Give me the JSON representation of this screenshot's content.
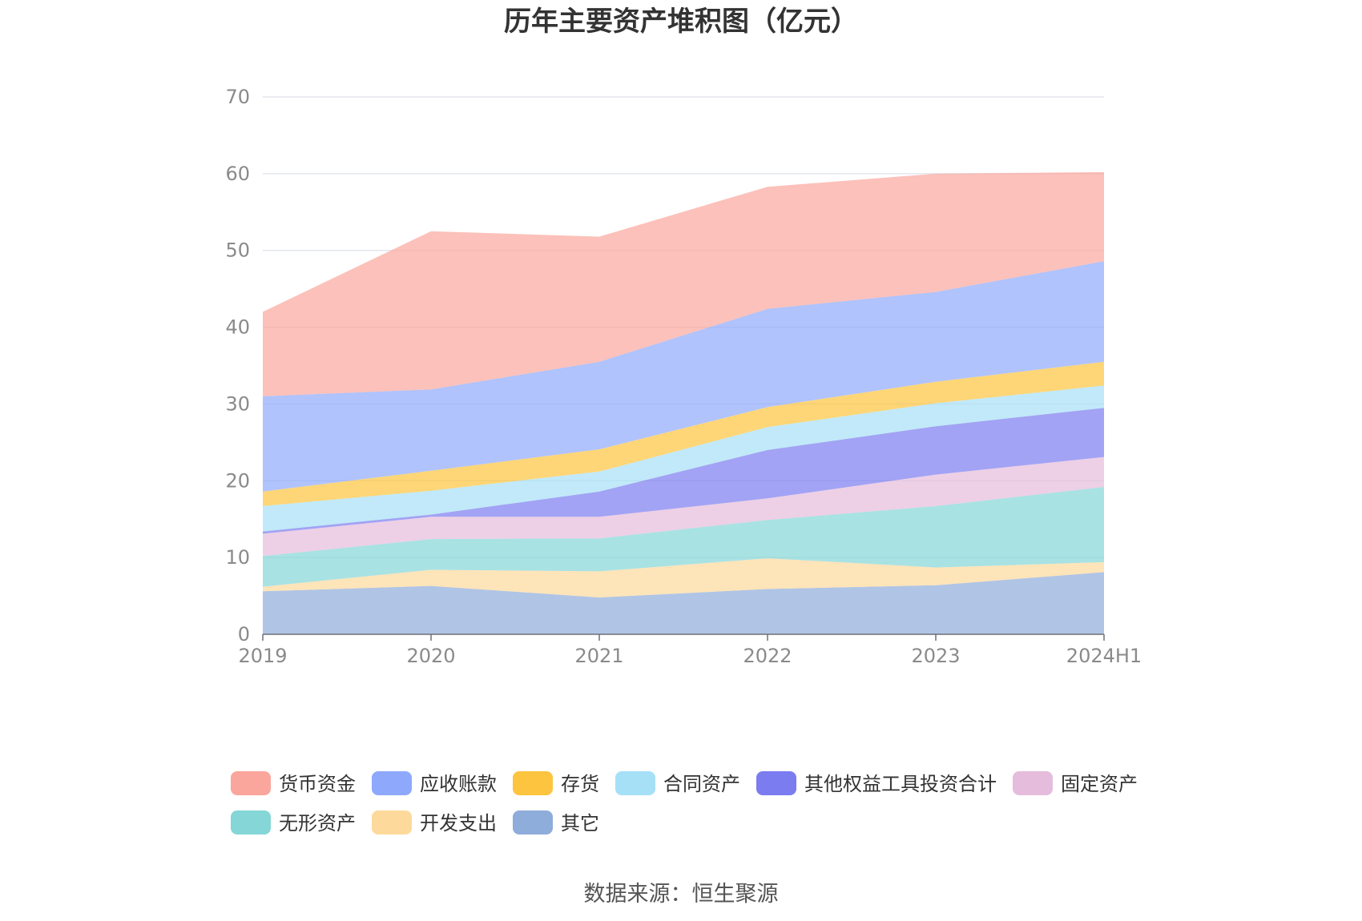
{
  "chart_data": {
    "type": "area",
    "stacked": true,
    "title": "历年主要资产堆积图（亿元）",
    "source": "数据来源：恒生聚源",
    "categories": [
      "2019",
      "2020",
      "2021",
      "2022",
      "2023",
      "2024H1"
    ],
    "ylim": [
      0,
      70
    ],
    "yticks": [
      "0",
      "10",
      "20",
      "30",
      "40",
      "50",
      "60",
      "70"
    ],
    "grid": true,
    "legend_position": "bottom",
    "series": [
      {
        "name": "其它",
        "color": "#8fadda",
        "values": [
          5.6,
          6.3,
          4.8,
          5.9,
          6.4,
          8.1
        ]
      },
      {
        "name": "开发支出",
        "color": "#fdd99b",
        "values": [
          0.6,
          2.1,
          3.4,
          4.0,
          2.3,
          1.3
        ]
      },
      {
        "name": "无形资产",
        "color": "#85d6d7",
        "values": [
          4.0,
          4.0,
          4.3,
          5.0,
          8.0,
          9.8
        ]
      },
      {
        "name": "固定资产",
        "color": "#e6bcdc",
        "values": [
          2.9,
          2.9,
          2.8,
          2.8,
          4.1,
          3.9
        ]
      },
      {
        "name": "其他权益工具投资合计",
        "color": "#7b7cf0",
        "values": [
          0.3,
          0.3,
          3.3,
          6.3,
          6.3,
          6.4
        ]
      },
      {
        "name": "合同资产",
        "color": "#a6e0f7",
        "values": [
          3.3,
          3.1,
          2.6,
          3.0,
          3.0,
          2.9
        ]
      },
      {
        "name": "存货",
        "color": "#fdc43f",
        "values": [
          1.9,
          2.6,
          2.9,
          2.6,
          2.8,
          3.1
        ]
      },
      {
        "name": "应收账款",
        "color": "#8ea9fb",
        "values": [
          12.4,
          10.6,
          11.4,
          12.8,
          11.7,
          13.1
        ]
      },
      {
        "name": "货币资金",
        "color": "#fba69c",
        "values": [
          11.0,
          20.6,
          16.3,
          15.9,
          15.4,
          11.6
        ]
      }
    ]
  }
}
